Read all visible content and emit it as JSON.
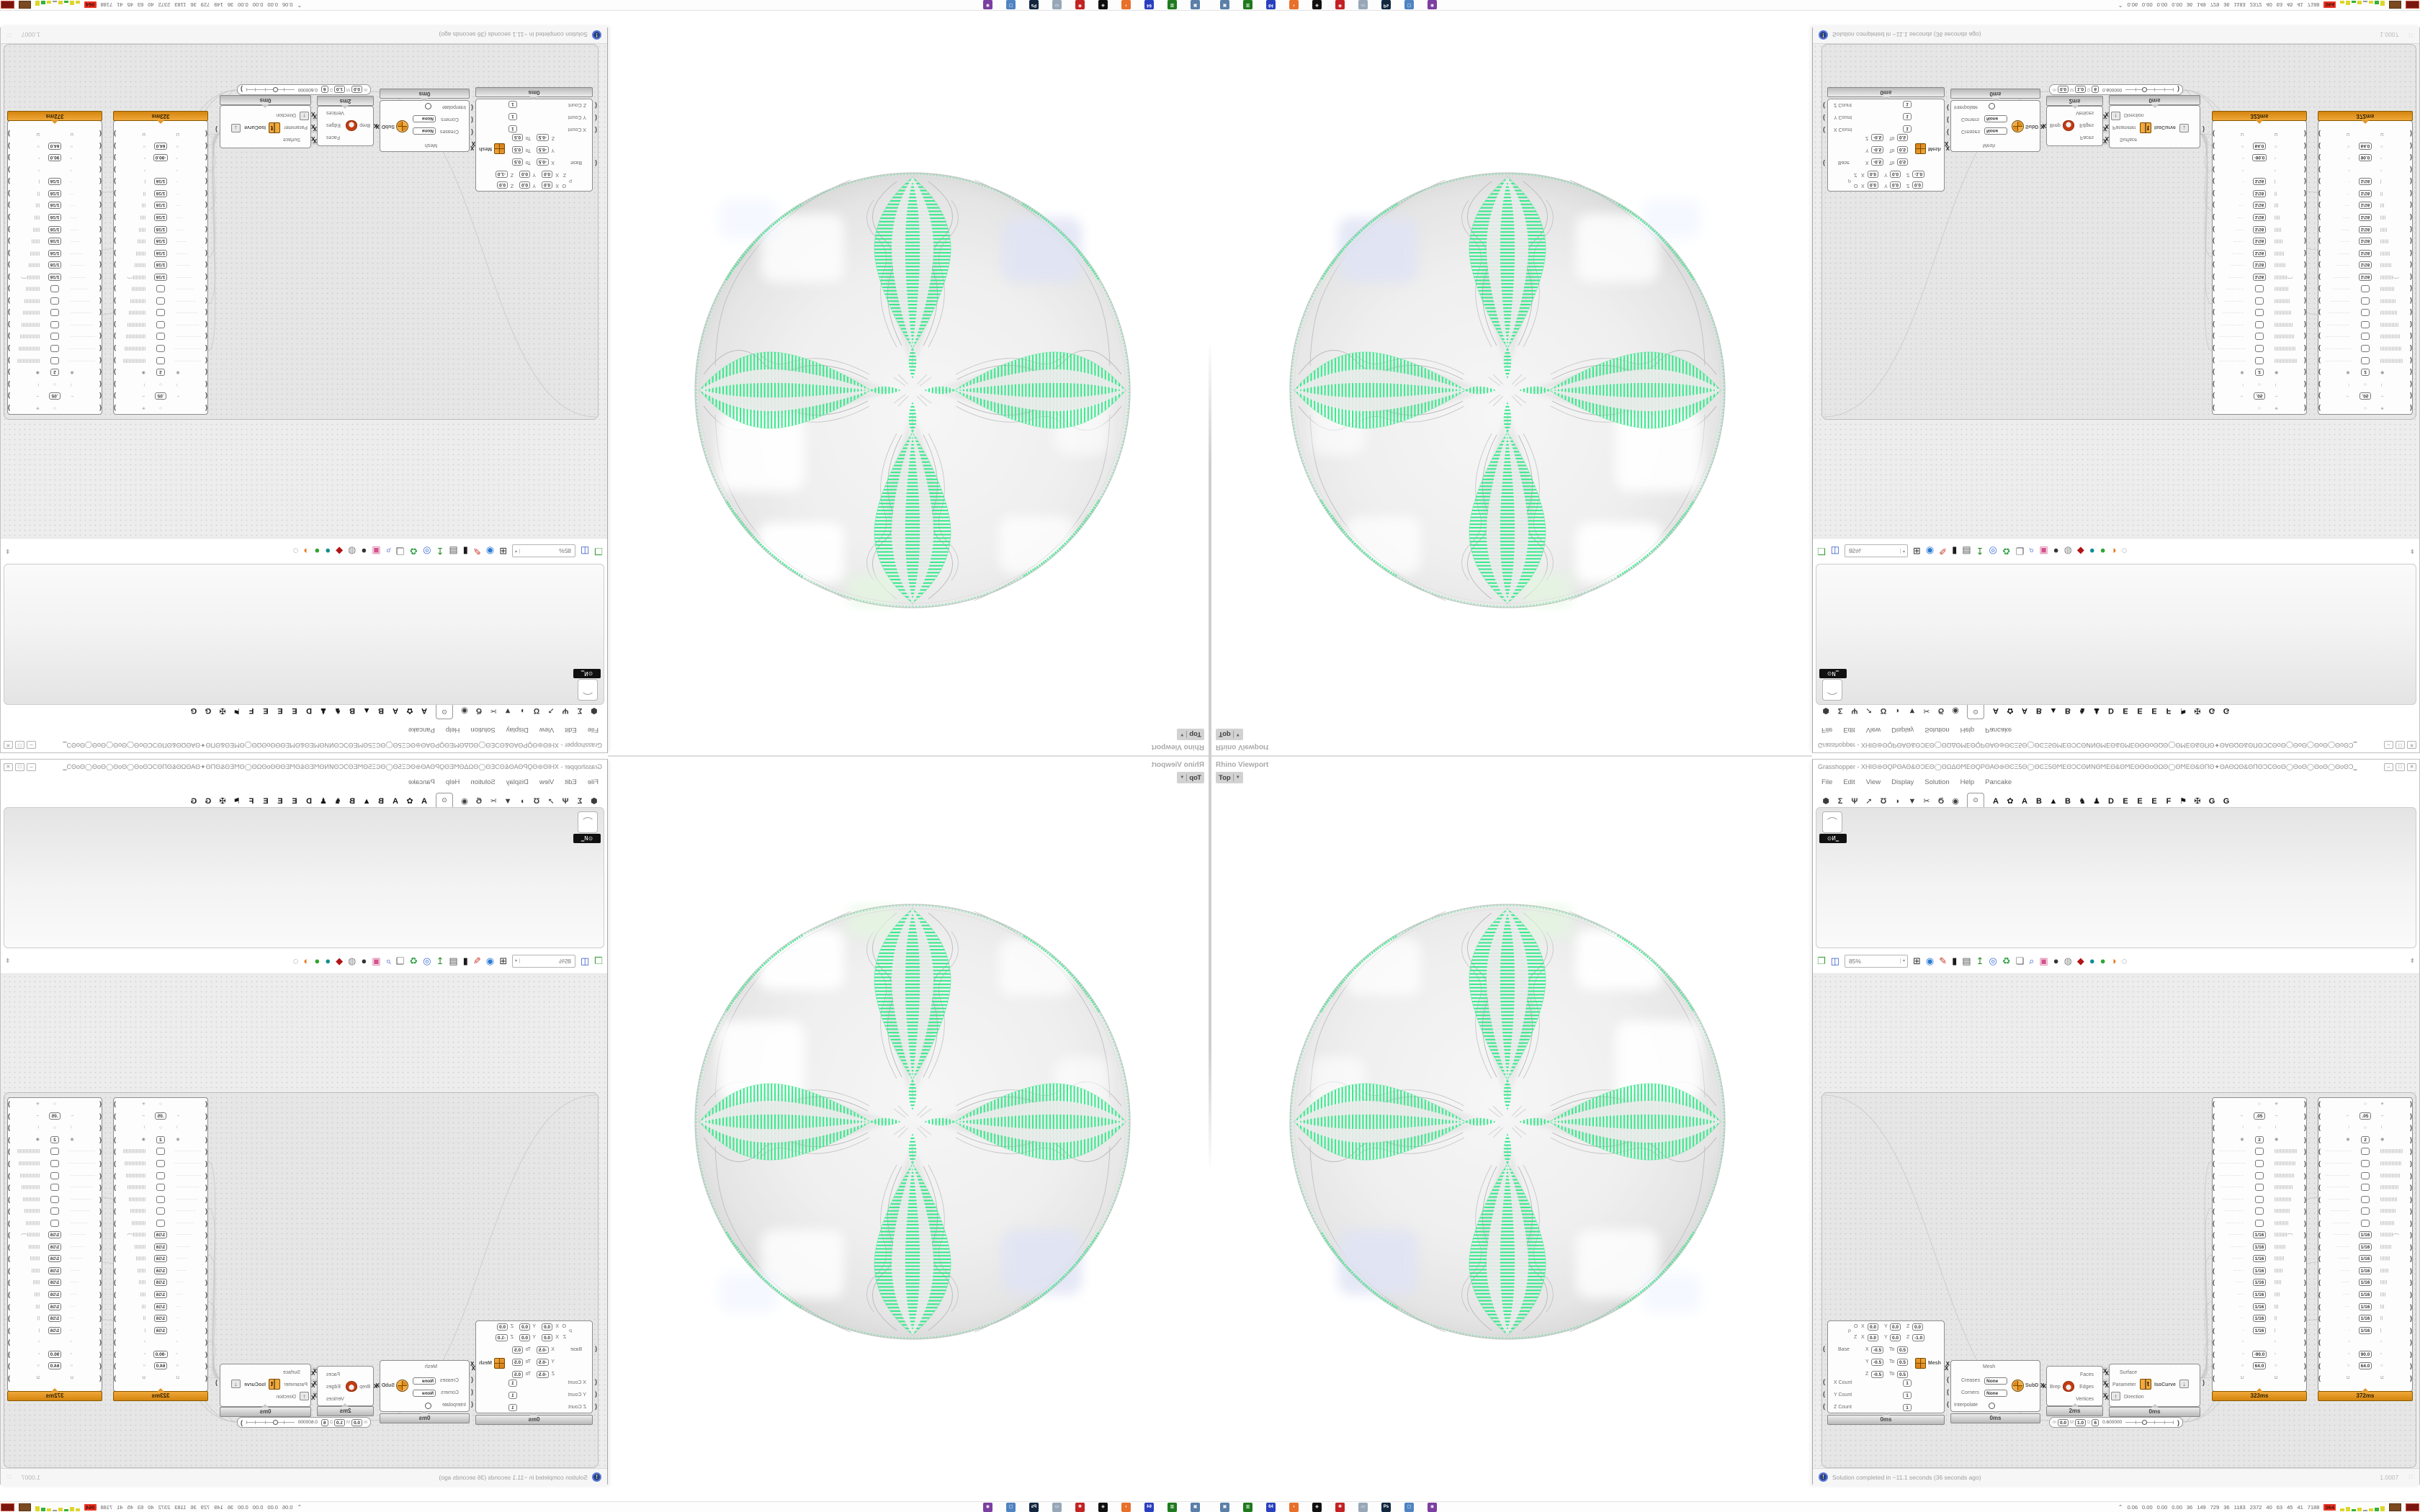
{
  "colors": {
    "green": "#38e98c",
    "orange": "#e6930f",
    "canvas": "#ededed",
    "accent_blue": "#24418f"
  },
  "viewport": {
    "label": "Rhino Viewport",
    "camera": "Top",
    "camera_caret": "▼"
  },
  "gh": {
    "title": "Grasshopper - XHΙΘ⊜ΘϘΡΘΑΘ&ΘϽΕΘ◯ΘΩΔΘϺΕΘϘΡΘΑΘ⊜ΘϾΞ5Θ◯ΘϾΞ5ΘϺΕΘϽϹΘͶΝΘϺΕΘ&ΘϺΕΘΘΘοΘΩΘ◯ΘϺΕΘ&ΘΠΘ✦ΘΑΘΩΘ&ΘΠΘϽϹΘοΘ◯ΘοΘ◯ΘοΘ◯ΘοΘϽ‗",
    "window_buttons": [
      "–",
      "□",
      "✕"
    ],
    "menu": [
      "File",
      "Edit",
      "View",
      "Display",
      "Solution",
      "Help",
      "Pancake"
    ],
    "tabs": {
      "icons": [
        "⬢",
        "Σ",
        "Ψ",
        "➚",
        "Ʊ",
        "◗",
        "▼",
        "✂",
        "Ϭ",
        "◉"
      ],
      "active": "⊙",
      "letters": [
        "A",
        "✿",
        "A",
        "B",
        "▲",
        "B",
        "♞",
        "♟",
        "D",
        "E",
        "E",
        "E",
        "F",
        "⚑",
        "✠",
        "G",
        "G"
      ]
    },
    "panel_tile": {
      "icon": "⌒",
      "label": "⊙Ͷ‗"
    },
    "toolbar": {
      "zoom": "85%",
      "caret": "▾",
      "overflow": "⇟",
      "icons": [
        {
          "n": "open-file-icon",
          "g": "❐",
          "c": "#3f9e3f"
        },
        {
          "n": "save-file-icon",
          "g": "◫",
          "c": "#2a52c8"
        },
        {
          "n": "zoom-extents-icon",
          "g": "⊞",
          "c": "#333333"
        },
        {
          "n": "preview-eye-icon",
          "g": "◉",
          "c": "#2d7ad0"
        },
        {
          "n": "sketch-pen-icon",
          "g": "✎",
          "c": "#c03020"
        },
        {
          "n": "exposure-icon",
          "g": "▮",
          "c": "#1a1a1a"
        },
        {
          "n": "camera-icon",
          "g": "▤",
          "c": "#555555"
        },
        {
          "n": "remote-tree-icon",
          "g": "↥",
          "c": "#2a8a2a"
        },
        {
          "n": "camera-blue-icon",
          "g": "◎",
          "c": "#3b6fd4"
        },
        {
          "n": "gha-recycle-icon",
          "g": "♻",
          "c": "#2f9e44"
        },
        {
          "n": "doc-flag-icon",
          "g": "❏",
          "c": "#666666"
        },
        {
          "n": "find-dollar-icon",
          "g": "⌕",
          "c": "#365fc0"
        },
        {
          "n": "pink-box-icon",
          "g": "▣",
          "c": "#d4538c"
        },
        {
          "n": "dark-sphere-icon",
          "g": "●",
          "c": "#333333"
        },
        {
          "n": "ring-sphere-icon",
          "g": "◍",
          "c": "#888888"
        },
        {
          "n": "red-gem-icon",
          "g": "◆",
          "c": "#b01515"
        },
        {
          "n": "teal-ball-icon",
          "g": "●",
          "c": "#0f8f8f"
        },
        {
          "n": "green-ball-icon",
          "g": "●",
          "c": "#2fa52f"
        },
        {
          "n": "orange-ball-icon",
          "g": "◑",
          "c": "#e07818"
        },
        {
          "n": "selection-circle-icon",
          "g": "◌",
          "c": "#777777"
        }
      ]
    },
    "status": {
      "text": "Solution completed in ~11.1 seconds (36 seconds ago)",
      "version": "1.0007",
      "icon": "!",
      "grip": "∷"
    },
    "components": {
      "meshbox": {
        "o_label": "O",
        "x_label": "X",
        "y_label": "Y",
        "z_label": "Z",
        "p_label": "P",
        "zrow_label": "Z",
        "ox": "0.0",
        "oy": "0.0",
        "oz": "0.0",
        "zx": "0.0",
        "zy": "0.0",
        "zz": "-1.0",
        "base_label": "Base",
        "to_label": "To",
        "dx1": "-0.5",
        "dx2": "0.5",
        "dy1": "-0.5",
        "dy2": "0.5",
        "dz1": "-0.5",
        "dz2": "0.5",
        "xcount_label": "X Count",
        "ycount_label": "Y Count",
        "zcount_label": "Z Count",
        "xcount": "1",
        "ycount": "1",
        "zcount": "1",
        "out_label": "Mesh",
        "time": "0ms"
      },
      "subd": {
        "in_label": "Mesh",
        "creases_label": "Creases",
        "creases": "None",
        "corners_label": "Corners",
        "corners": "None",
        "interpolate_label": "Interpolate",
        "out_label": "SubD",
        "time": "0ms"
      },
      "brep": {
        "in_label": "Brep",
        "out1": "Faces",
        "out2": "Edges",
        "out3": "Vertices",
        "time": "2ms"
      },
      "iso": {
        "in1": "Surface",
        "in2": "Parameter",
        "in3": "Direction",
        "out_label": "IsoCurve",
        "t_glyph": "t",
        "arrow_up": "↑",
        "arrow_down": "↓",
        "time": "0ms"
      },
      "slider": {
        "m_label": "m",
        "m": "0.0",
        "M_label": "M",
        "M": "1.0",
        "D_label": "D",
        "D": "6",
        "value": "0.600000",
        "percent": 58
      },
      "stacks": [
        {
          "name": "stack-323",
          "angle": "-90.0",
          "size": "64.0",
          "step": ".05",
          "count": "2",
          "time": "323ms"
        },
        {
          "name": "stack-372",
          "angle": "90.0",
          "size": "64.0",
          "step": ".05",
          "count": "2",
          "time": "372ms"
        }
      ],
      "stack_rows": {
        "frac": "1/16",
        "omega": "Ω",
        "square": "▫",
        "circle": "○",
        "caret": "ˆ",
        "star": "✳",
        "harr": "⇔",
        "varr": "↕",
        "dot": "◉",
        "squiggle": "⌒",
        "empty_dots": [
          16,
          15,
          14,
          13,
          12,
          11,
          10
        ],
        "frac_dots": [
          9,
          8,
          7,
          6,
          5,
          4,
          3,
          2,
          1
        ]
      }
    }
  },
  "taskbar": {
    "apps": [
      {
        "n": "screenshot-tool",
        "c": "#5a7fa8",
        "g": "▣"
      },
      {
        "n": "disk-utility",
        "c": "#1f7a1f",
        "g": "▥"
      },
      {
        "n": "floppy-64",
        "c": "#2a3fbf",
        "g": "64"
      },
      {
        "n": "firefox",
        "c": "#e8702a",
        "g": "◗"
      },
      {
        "n": "inkscape",
        "c": "#101010",
        "g": "◈"
      },
      {
        "n": "settings-red",
        "c": "#c32222",
        "g": "✽"
      },
      {
        "n": "file-manager",
        "c": "#97a7b8",
        "g": "▭"
      },
      {
        "n": "photoshop",
        "c": "#12263f",
        "g": "Ps"
      },
      {
        "n": "remote-viewer",
        "c": "#4f83c2",
        "g": "▢"
      },
      {
        "n": "media-purple",
        "c": "#7a3fa0",
        "g": "◉"
      }
    ],
    "caret": "⌃",
    "stats": [
      "0.06",
      "0.00",
      "0.00",
      "0.00",
      "36",
      "149",
      "729",
      "36",
      "1183",
      "2372",
      "40",
      "63",
      "45",
      "41",
      "7188"
    ],
    "badge": "064",
    "spark": [
      {
        "c": "#ded52a",
        "h": 4
      },
      {
        "c": "#ded52a",
        "h": 6
      },
      {
        "c": "#35b235",
        "h": 3
      },
      {
        "c": "#ded52a",
        "h": 5
      },
      {
        "c": "#9a9a9a",
        "h": 2
      },
      {
        "c": "#ded52a",
        "h": 4
      },
      {
        "c": "#35b235",
        "h": 5
      },
      {
        "c": "#ded52a",
        "h": 7
      }
    ]
  }
}
